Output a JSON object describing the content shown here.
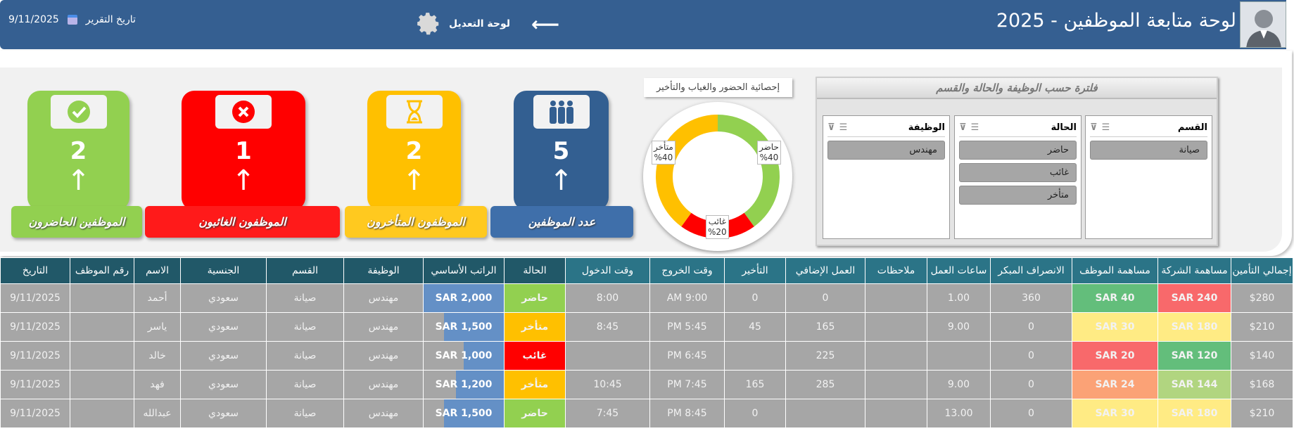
{
  "header": {
    "title": "لوحة متابعة الموظفين - 2025",
    "edit_label": "لوحة التعديل",
    "report_date_label": "تاريخ التقرير",
    "report_date": "9/11/2025"
  },
  "kpis": [
    {
      "label": "الموظفين الحاضرون",
      "value": "2",
      "color": "#92d050",
      "icon": "check-icon"
    },
    {
      "label": "الموظفون الغائبون",
      "value": "1",
      "color": "#ff0000",
      "icon": "x-icon"
    },
    {
      "label": "الموظفون المتأخرون",
      "value": "2",
      "color": "#ffc000",
      "icon": "hourglass-icon"
    },
    {
      "label": "عدد الموظفين",
      "value": "5",
      "color": "#335f91",
      "icon": "people-icon"
    }
  ],
  "chart_data": {
    "type": "pie",
    "title": "إحصائية الحضور والغياب والتأخير",
    "categories": [
      "حاضر",
      "غائب",
      "متأخر"
    ],
    "values": [
      40,
      20,
      40
    ],
    "labels": [
      "%40",
      "%20",
      "%40"
    ],
    "colors": [
      "#92d050",
      "#ff0000",
      "#ffc000"
    ]
  },
  "slicers": {
    "title": "فلترة حسب الوظيفة والحالة والقسم",
    "dept": {
      "title": "القسم",
      "items": [
        "صيانة"
      ]
    },
    "status": {
      "title": "الحالة",
      "items": [
        "حاضر",
        "غائب",
        "متأخر"
      ]
    },
    "job": {
      "title": "الوظيفة",
      "items": [
        "مهندس"
      ]
    }
  },
  "table": {
    "headers": [
      "إجمالي التأمين",
      "مساهمة الشركة",
      "مساهمة الموظف",
      "الانصراف المبكر",
      "ساعات العمل",
      "ملاحظات",
      "العمل الإضافي",
      "التأخير",
      "وقت الخروج",
      "وقت الدخول",
      "الحالة",
      "الراتب الأساسي",
      "الوظيفة",
      "القسم",
      "الجنسية",
      "الاسم",
      "رقم الموظف",
      "التاريخ"
    ],
    "rows": [
      {
        "cells": [
          "$280",
          "SAR 240",
          "SAR 40",
          "360",
          "1.00",
          "",
          "0",
          "0",
          "9:00 AM",
          "8:00",
          "حاضر",
          "SAR 2,000",
          "مهندس",
          "صيانة",
          "سعودي",
          "أحمد",
          "",
          "9/11/2025"
        ],
        "company_color": "#f8696b",
        "employee_color": "#63be7b",
        "status_color": "#92d050",
        "salary_fill": 1.0
      },
      {
        "cells": [
          "$210",
          "SAR 180",
          "SAR 30",
          "0",
          "9.00",
          "",
          "165",
          "45",
          "5:45 PM",
          "8:45",
          "متأخر",
          "SAR 1,500",
          "مهندس",
          "صيانة",
          "سعودي",
          "ياسر",
          "",
          "9/11/2025"
        ],
        "company_color": "#ffeb84",
        "employee_color": "#ffeb84",
        "status_color": "#ffc000",
        "salary_fill": 0.75
      },
      {
        "cells": [
          "$140",
          "SAR 120",
          "SAR 20",
          "0",
          "",
          "",
          "225",
          "",
          "6:45 PM",
          "",
          "غائب",
          "SAR 1,000",
          "مهندس",
          "صيانة",
          "سعودي",
          "خالد",
          "",
          "9/11/2025"
        ],
        "company_color": "#63be7b",
        "employee_color": "#f8696b",
        "status_color": "#ff0000",
        "salary_fill": 0.5
      },
      {
        "cells": [
          "$168",
          "SAR 144",
          "SAR 24",
          "0",
          "9.00",
          "",
          "285",
          "165",
          "7:45 PM",
          "10:45",
          "متأخر",
          "SAR 1,200",
          "مهندس",
          "صيانة",
          "سعودي",
          "فهد",
          "",
          "9/11/2025"
        ],
        "company_color": "#b1d580",
        "employee_color": "#fba276",
        "status_color": "#ffc000",
        "salary_fill": 0.6
      },
      {
        "cells": [
          "$210",
          "SAR 180",
          "SAR 30",
          "0",
          "13.00",
          "",
          "",
          "0",
          "8:45 PM",
          "7:45",
          "حاضر",
          "SAR 1,500",
          "مهندس",
          "صيانة",
          "سعودي",
          "عبدالله",
          "",
          "9/11/2025"
        ],
        "company_color": "#ffeb84",
        "employee_color": "#ffeb84",
        "status_color": "#92d050",
        "salary_fill": 0.75
      }
    ]
  }
}
